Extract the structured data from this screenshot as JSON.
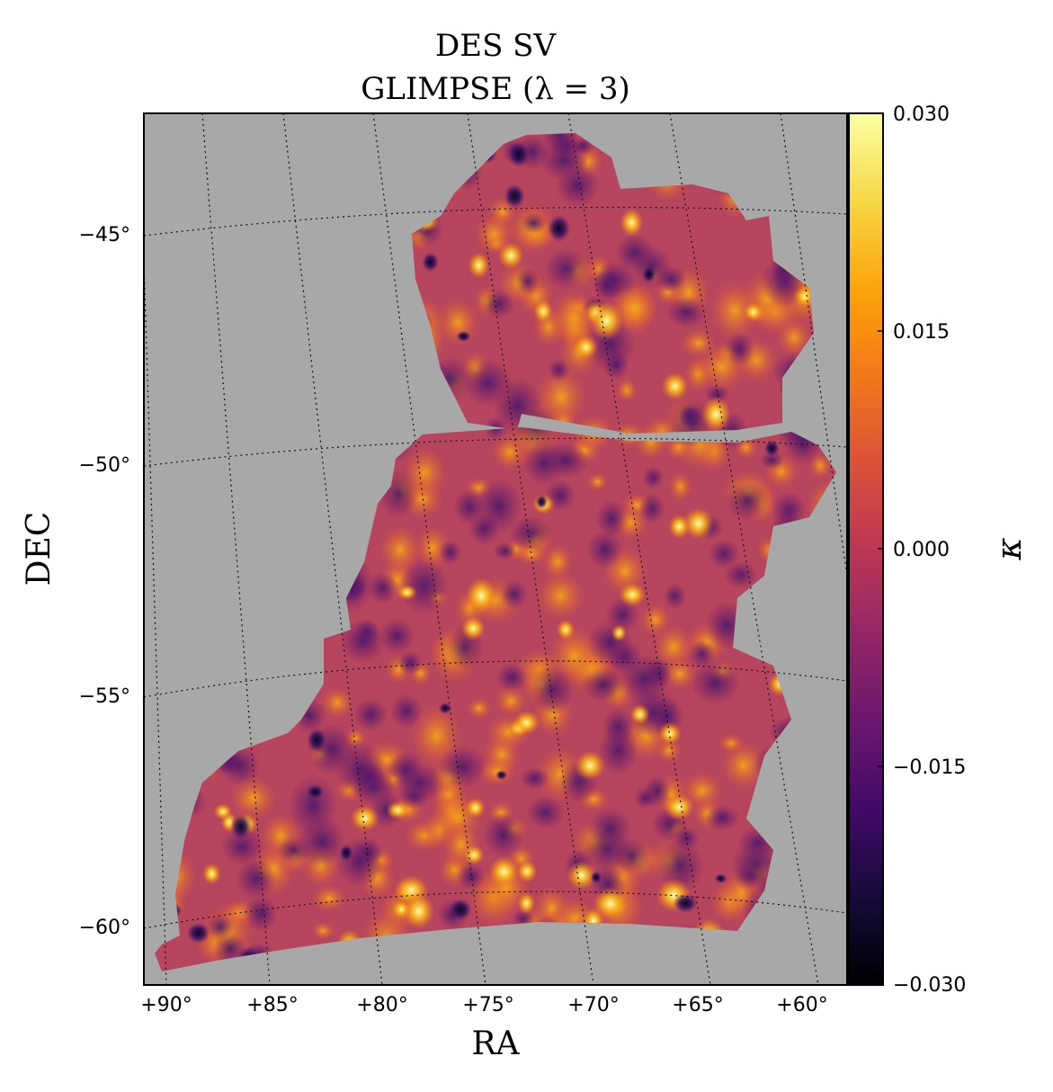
{
  "chart_data": {
    "type": "heatmap",
    "title_line1": "DES SV",
    "title_line2": "GLIMPSE  (λ = 3)",
    "xlabel": "RA",
    "ylabel": "DEC",
    "x_ticks": [
      "+90°",
      "+85°",
      "+80°",
      "+75°",
      "+70°",
      "+65°",
      "+60°"
    ],
    "y_ticks": [
      "−45°",
      "−50°",
      "−55°",
      "−60°"
    ],
    "colorbar": {
      "label": "κ",
      "ticks": [
        "0.030",
        "0.015",
        "0.000",
        "−0.015",
        "−0.030"
      ],
      "range": [
        -0.03,
        0.03
      ],
      "colormap": "inferno"
    },
    "grid": "dotted graticule",
    "background_color": "#a8a8a8"
  }
}
